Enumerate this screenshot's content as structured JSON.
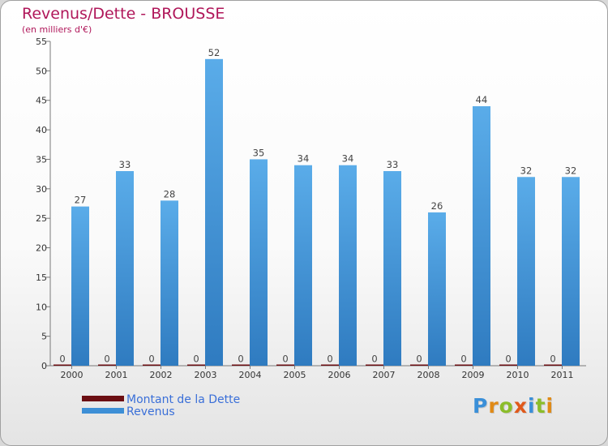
{
  "colors": {
    "title": "#b0175a",
    "revenus": "#3d8fd6",
    "dette": "#6b0e12",
    "legend_text": "#3a6fd8"
  },
  "chart_data": {
    "type": "bar",
    "title": "Revenus/Dette - BROUSSE",
    "subtitle": "(en milliers d'€)",
    "xlabel": "",
    "ylabel": "",
    "ylim": [
      0,
      55
    ],
    "yticks": [
      "0",
      "5",
      "10",
      "15",
      "20",
      "25",
      "30",
      "35",
      "40",
      "45",
      "50",
      "55"
    ],
    "categories": [
      "2000",
      "2001",
      "2002",
      "2003",
      "2004",
      "2005",
      "2006",
      "2007",
      "2008",
      "2009",
      "2010",
      "2011"
    ],
    "series": [
      {
        "name": "Montant de la Dette",
        "values": [
          0,
          0,
          0,
          0,
          0,
          0,
          0,
          0,
          0,
          0,
          0,
          0
        ],
        "labels": [
          "0",
          "0",
          "0",
          "0",
          "0",
          "0",
          "0",
          "0",
          "0",
          "0",
          "0",
          "0"
        ]
      },
      {
        "name": "Revenus",
        "values": [
          27,
          33,
          28,
          52,
          35,
          34,
          34,
          33,
          26,
          44,
          32,
          32
        ],
        "labels": [
          "27",
          "33",
          "28",
          "52",
          "35",
          "34",
          "34",
          "33",
          "26",
          "44",
          "32",
          "32"
        ]
      }
    ],
    "legend_position": "bottom-left",
    "grid": false
  },
  "logo": {
    "letters": [
      "P",
      "r",
      "o",
      "x",
      "i",
      "t",
      "i"
    ],
    "colors": [
      "#3a8fd8",
      "#e08a16",
      "#8bbd2a",
      "#e0591a",
      "#3a8fd8",
      "#8bbd2a",
      "#e08a16"
    ]
  }
}
